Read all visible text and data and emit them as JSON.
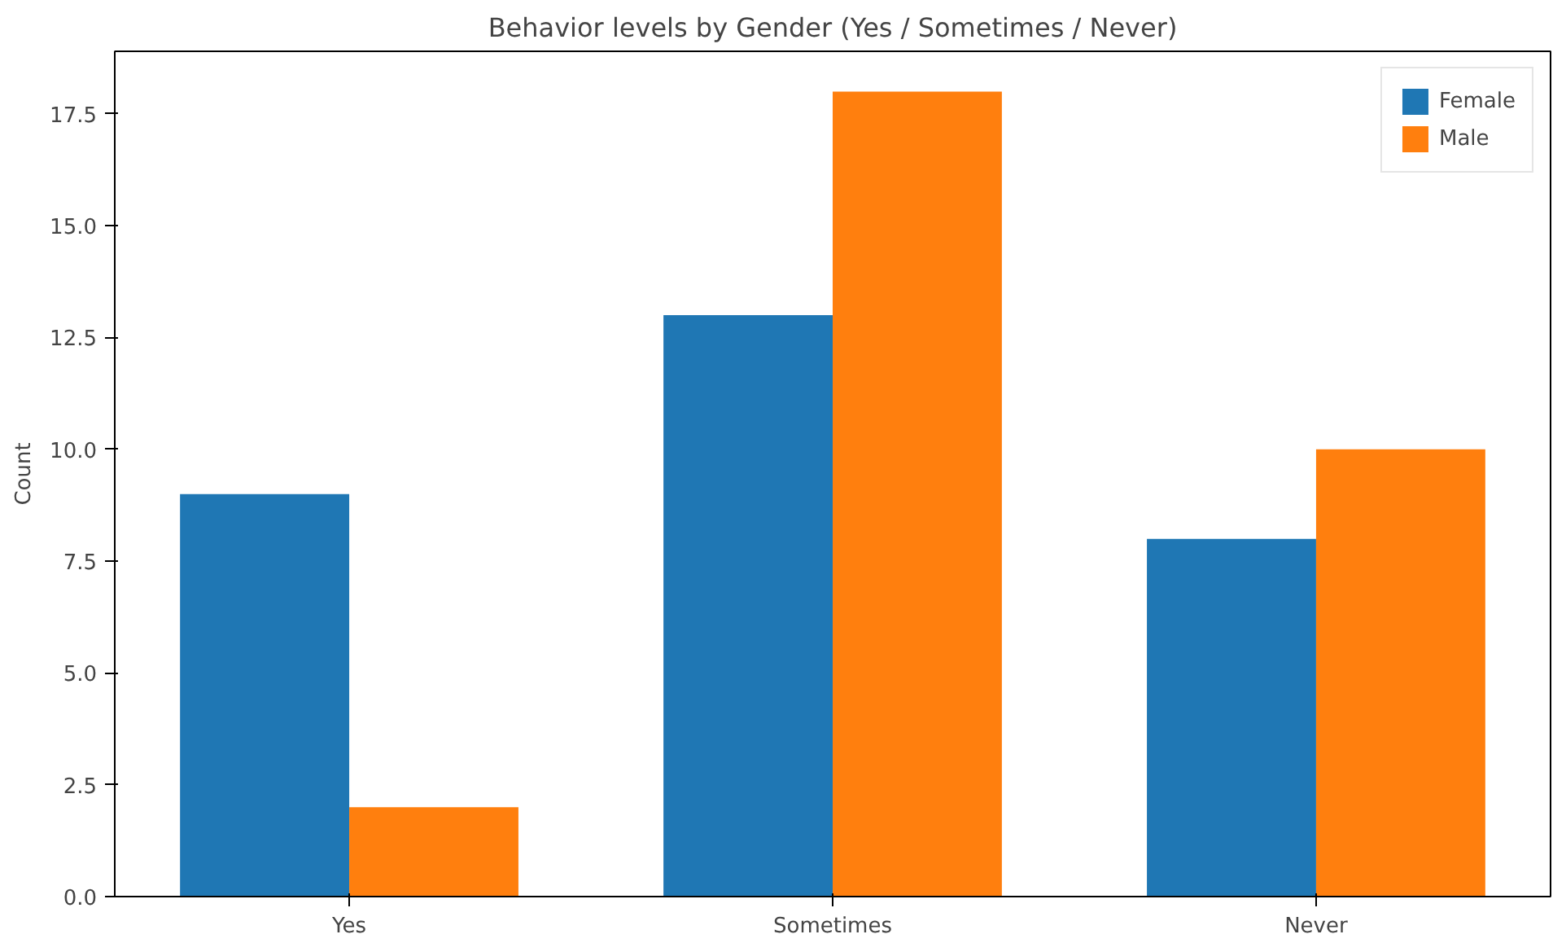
{
  "chart_data": {
    "type": "bar",
    "title": "Behavior levels by Gender (Yes / Sometimes / Never)",
    "ylabel": "Count",
    "categories": [
      "Yes",
      "Sometimes",
      "Never"
    ],
    "series": [
      {
        "name": "Female",
        "color": "#1f77b4",
        "values": [
          9,
          13,
          8
        ]
      },
      {
        "name": "Male",
        "color": "#ff7f0e",
        "values": [
          2,
          18,
          10
        ]
      }
    ],
    "ylim": [
      0,
      18.9
    ],
    "yticks": [
      {
        "value": 0,
        "label": "0.0"
      },
      2.5,
      {
        "value": 5,
        "label": "5.0"
      },
      7.5,
      {
        "value": 10,
        "label": "10.0"
      },
      12.5,
      {
        "value": 15,
        "label": "15.0"
      },
      17.5
    ],
    "grid": false,
    "legend": "top right"
  }
}
